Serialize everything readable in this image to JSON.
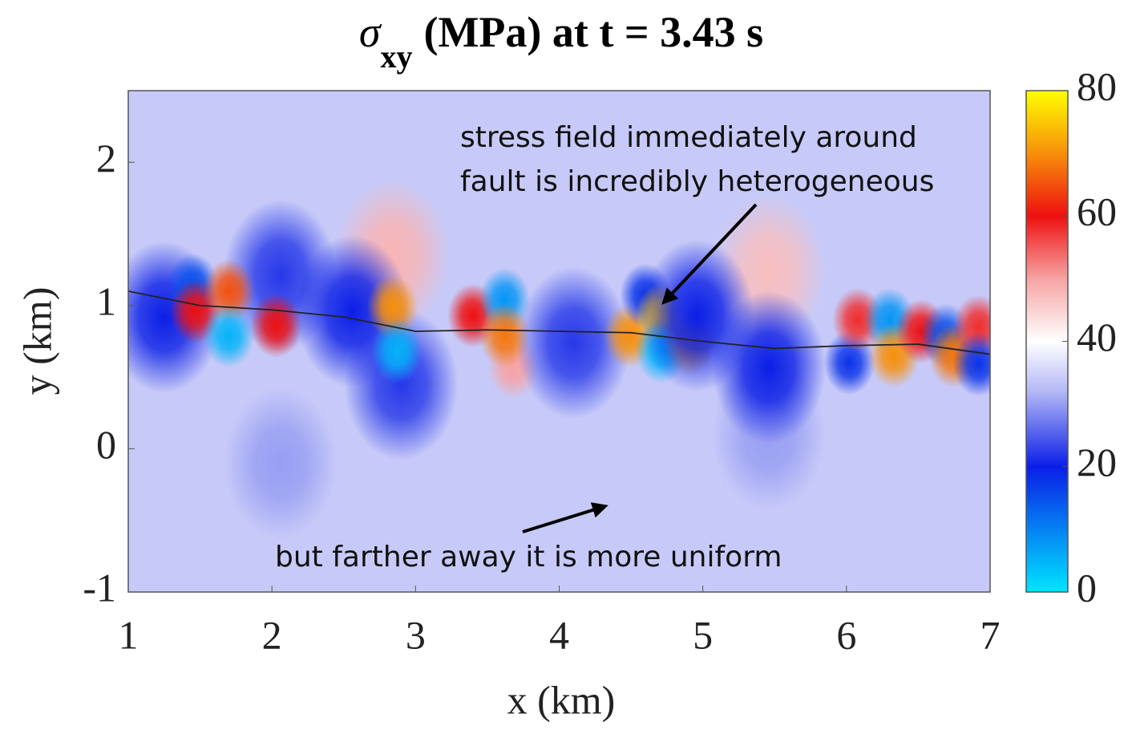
{
  "chart_data": {
    "type": "heatmap",
    "title": {
      "symbol": "σ",
      "subscript": "xy",
      "rest": "(MPa) at t = 3.43 s"
    },
    "xlabel": "x (km)",
    "ylabel": "y (km)",
    "xlim": [
      1,
      7
    ],
    "ylim": [
      -1,
      2.5
    ],
    "xticks": [
      1,
      2,
      3,
      4,
      5,
      6,
      7
    ],
    "yticks": [
      -1,
      0,
      1,
      2
    ],
    "clim": [
      0,
      80
    ],
    "cticks": [
      0,
      20,
      40,
      60,
      80
    ],
    "colormap": [
      {
        "value": 0,
        "color": "#00e5ff"
      },
      {
        "value": 20,
        "color": "#0a1ee6"
      },
      {
        "value": 32,
        "color": "#b4b8f5"
      },
      {
        "value": 40,
        "color": "#ffffff"
      },
      {
        "value": 50,
        "color": "#f7a3a3"
      },
      {
        "value": 60,
        "color": "#ee1010"
      },
      {
        "value": 70,
        "color": "#f7900a"
      },
      {
        "value": 80,
        "color": "#ffff00"
      }
    ],
    "background": 34,
    "blobs": [
      {
        "x": 2.06,
        "y": -0.1,
        "value": 30
      },
      {
        "x": 5.46,
        "y": 0.1,
        "value": 30
      },
      {
        "x": 2.84,
        "y": 1.35,
        "value": 48
      },
      {
        "x": 5.46,
        "y": 1.24,
        "value": 47
      },
      {
        "x": 2.06,
        "y": 1.21,
        "value": 22
      },
      {
        "x": 2.9,
        "y": 0.45,
        "value": 22
      },
      {
        "x": 3.68,
        "y": 0.57,
        "value": 50
      },
      {
        "x": 1.25,
        "y": 0.92,
        "value": 20
      },
      {
        "x": 1.45,
        "y": 1.14,
        "value": 15
      },
      {
        "x": 1.47,
        "y": 0.96,
        "value": 60
      },
      {
        "x": 1.7,
        "y": 1.1,
        "value": 65
      },
      {
        "x": 1.7,
        "y": 0.79,
        "value": 5
      },
      {
        "x": 2.03,
        "y": 0.86,
        "value": 60
      },
      {
        "x": 2.56,
        "y": 0.96,
        "value": 20
      },
      {
        "x": 2.84,
        "y": 0.99,
        "value": 70
      },
      {
        "x": 2.87,
        "y": 0.68,
        "value": 5
      },
      {
        "x": 3.4,
        "y": 0.93,
        "value": 60
      },
      {
        "x": 3.62,
        "y": 1.04,
        "value": 8
      },
      {
        "x": 3.62,
        "y": 0.79,
        "value": 68
      },
      {
        "x": 4.1,
        "y": 0.74,
        "value": 22
      },
      {
        "x": 4.49,
        "y": 0.79,
        "value": 70
      },
      {
        "x": 4.6,
        "y": 1.07,
        "value": 18
      },
      {
        "x": 4.71,
        "y": 0.93,
        "value": 75
      },
      {
        "x": 4.71,
        "y": 0.68,
        "value": 5
      },
      {
        "x": 4.91,
        "y": 0.74,
        "value": 72
      },
      {
        "x": 4.96,
        "y": 0.93,
        "value": 20
      },
      {
        "x": 5.46,
        "y": 0.57,
        "value": 20
      },
      {
        "x": 6.02,
        "y": 0.6,
        "value": 18
      },
      {
        "x": 6.08,
        "y": 0.9,
        "value": 58
      },
      {
        "x": 6.3,
        "y": 0.9,
        "value": 8
      },
      {
        "x": 6.33,
        "y": 0.65,
        "value": 70
      },
      {
        "x": 6.52,
        "y": 0.82,
        "value": 60
      },
      {
        "x": 6.69,
        "y": 0.79,
        "value": 15
      },
      {
        "x": 6.75,
        "y": 0.65,
        "value": 68
      },
      {
        "x": 6.92,
        "y": 0.85,
        "value": 58
      },
      {
        "x": 6.92,
        "y": 0.59,
        "value": 18
      }
    ],
    "fault": {
      "x": [
        1,
        1.5,
        2,
        2.5,
        3,
        3.5,
        4,
        4.5,
        5,
        5.5,
        6,
        6.5,
        7
      ],
      "y": [
        1.1,
        1.0,
        0.97,
        0.92,
        0.82,
        0.83,
        0.82,
        0.81,
        0.75,
        0.7,
        0.72,
        0.73,
        0.66
      ]
    },
    "annotations": [
      {
        "lines": [
          "stress field immediately around",
          "fault is incredibly heterogeneous"
        ]
      },
      {
        "lines": [
          "but farther away it is more uniform"
        ]
      }
    ]
  }
}
